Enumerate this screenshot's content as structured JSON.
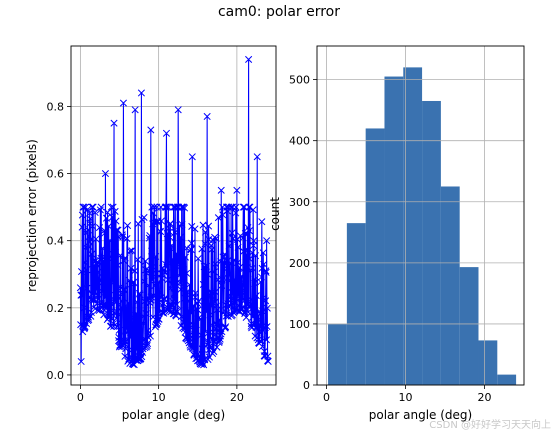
{
  "title": "cam0: polar error",
  "watermark": "CSDN @好好学习天天向上",
  "colors": {
    "line": "#0000ff",
    "bar": "#3a72b0",
    "grid": "#b0b0b0"
  },
  "chart_data": [
    {
      "type": "line",
      "xlabel": "polar angle (deg)",
      "ylabel": "reprojection error (pixels)",
      "xlim": [
        -1.2,
        25
      ],
      "ylim": [
        -0.03,
        0.98
      ],
      "xticks": [
        "0",
        "10",
        "20"
      ],
      "yticks": [
        "0.0",
        "0.2",
        "0.4",
        "0.6",
        "0.8"
      ],
      "marker": "x",
      "grid": true,
      "x_range": [
        0.0,
        24.0
      ],
      "n_points": 650,
      "peaks": [
        {
          "x": 0.1,
          "y": 0.04
        },
        {
          "x": 1.5,
          "y": 0.5
        },
        {
          "x": 3.2,
          "y": 0.6
        },
        {
          "x": 4.3,
          "y": 0.75
        },
        {
          "x": 5.5,
          "y": 0.81
        },
        {
          "x": 7.0,
          "y": 0.79
        },
        {
          "x": 7.8,
          "y": 0.84
        },
        {
          "x": 9.0,
          "y": 0.73
        },
        {
          "x": 11.0,
          "y": 0.72
        },
        {
          "x": 12.5,
          "y": 0.79
        },
        {
          "x": 14.3,
          "y": 0.65
        },
        {
          "x": 16.2,
          "y": 0.77
        },
        {
          "x": 18.0,
          "y": 0.55
        },
        {
          "x": 20.0,
          "y": 0.55
        },
        {
          "x": 21.5,
          "y": 0.94
        },
        {
          "x": 22.6,
          "y": 0.65
        },
        {
          "x": 23.8,
          "y": 0.4
        }
      ]
    },
    {
      "type": "bar",
      "xlabel": "polar angle (deg)",
      "ylabel": "count",
      "xlim": [
        -1.2,
        25
      ],
      "ylim": [
        0,
        555
      ],
      "xticks": [
        "0",
        "10",
        "20"
      ],
      "yticks": [
        "0",
        "100",
        "200",
        "300",
        "400",
        "500"
      ],
      "grid": true,
      "bin_edges": [
        0.2,
        2.58,
        4.96,
        7.34,
        9.72,
        12.1,
        14.48,
        16.86,
        19.24,
        21.62,
        24.0
      ],
      "values": [
        100,
        265,
        420,
        505,
        520,
        465,
        325,
        193,
        73,
        17
      ]
    }
  ]
}
